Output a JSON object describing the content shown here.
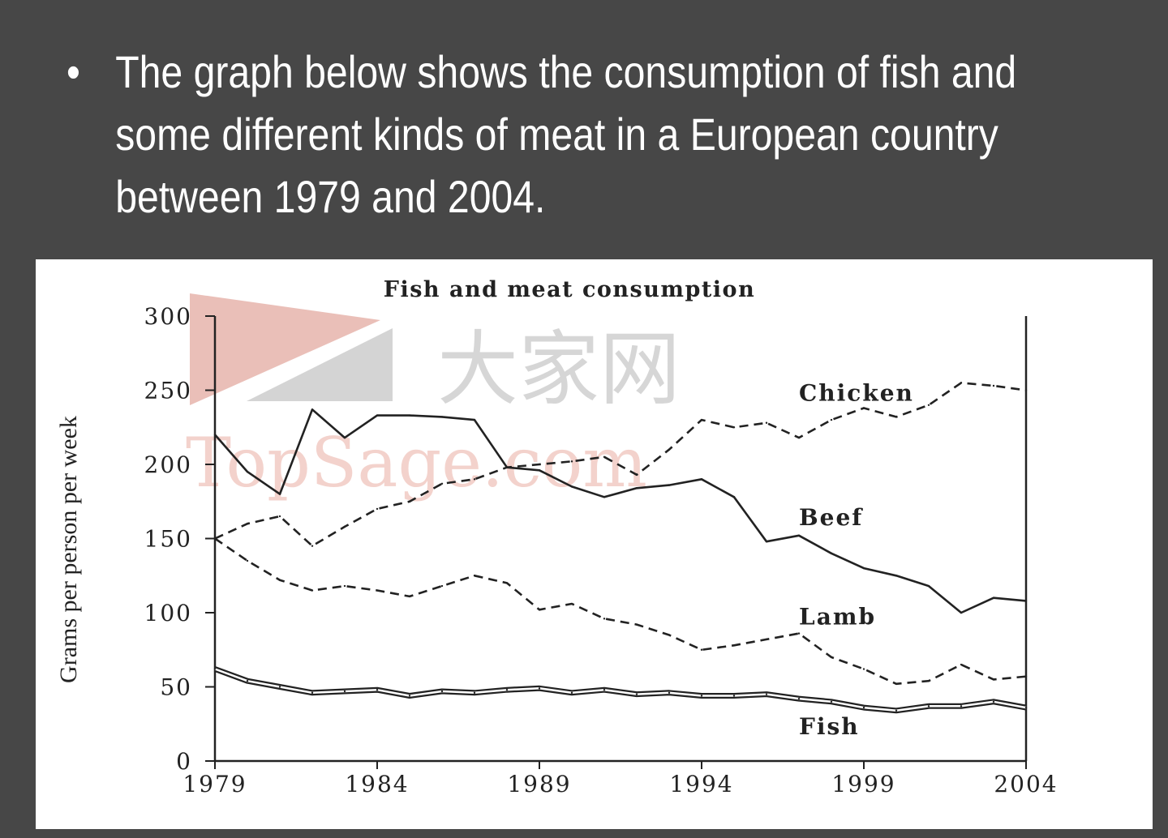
{
  "slide": {
    "bullet": "•",
    "text_lines": [
      "The graph below shows the consumption of fish and",
      "some different kinds of meat in a European country",
      "between 1979 and 2004."
    ]
  },
  "watermark": {
    "cjk": "大家网",
    "latin": "TopSage.com"
  },
  "colors": {
    "background": "#474747",
    "panel": "#ffffff",
    "ink": "#222222",
    "watermark_red": "#e3aaa0",
    "watermark_grey": "#d0d0d0"
  },
  "chart_data": {
    "type": "line",
    "title": "Fish and meat consumption",
    "ylabel": "Grams per person per week",
    "xlabel": "",
    "xlim": [
      1979,
      2004
    ],
    "ylim": [
      0,
      300
    ],
    "x_ticks": [
      1979,
      1984,
      1989,
      1994,
      1999,
      2004
    ],
    "y_ticks": [
      0,
      50,
      100,
      150,
      200,
      250,
      300
    ],
    "grid": false,
    "series": [
      {
        "name": "Chicken",
        "style": "dashed",
        "label_year": 1997,
        "label_value": 243,
        "x": [
          1979,
          1980,
          1981,
          1982,
          1983,
          1984,
          1985,
          1986,
          1987,
          1988,
          1989,
          1990,
          1991,
          1992,
          1993,
          1994,
          1995,
          1996,
          1997,
          1998,
          1999,
          2000,
          2001,
          2002,
          2003,
          2004
        ],
        "values": [
          150,
          160,
          165,
          145,
          158,
          170,
          175,
          187,
          190,
          198,
          200,
          202,
          205,
          193,
          210,
          230,
          225,
          228,
          218,
          230,
          238,
          232,
          240,
          255,
          253,
          250
        ]
      },
      {
        "name": "Beef",
        "style": "solid",
        "label_year": 1997,
        "label_value": 159,
        "x": [
          1979,
          1980,
          1981,
          1982,
          1983,
          1984,
          1985,
          1986,
          1987,
          1988,
          1989,
          1990,
          1991,
          1992,
          1993,
          1994,
          1995,
          1996,
          1997,
          1998,
          1999,
          2000,
          2001,
          2002,
          2003,
          2004
        ],
        "values": [
          220,
          195,
          180,
          237,
          218,
          233,
          233,
          232,
          230,
          198,
          196,
          185,
          178,
          184,
          186,
          190,
          178,
          148,
          152,
          140,
          130,
          125,
          118,
          100,
          110,
          108
        ]
      },
      {
        "name": "Lamb",
        "style": "dashed",
        "label_year": 1997,
        "label_value": 92,
        "x": [
          1979,
          1980,
          1981,
          1982,
          1983,
          1984,
          1985,
          1986,
          1987,
          1988,
          1989,
          1990,
          1991,
          1992,
          1993,
          1994,
          1995,
          1996,
          1997,
          1998,
          1999,
          2000,
          2001,
          2002,
          2003,
          2004
        ],
        "values": [
          150,
          135,
          122,
          115,
          118,
          115,
          111,
          118,
          125,
          120,
          102,
          106,
          96,
          92,
          85,
          75,
          78,
          82,
          86,
          70,
          62,
          52,
          54,
          65,
          55,
          57
        ]
      },
      {
        "name": "Fish",
        "style": "double",
        "label_year": 1997,
        "label_value": 18,
        "x": [
          1979,
          1980,
          1981,
          1982,
          1983,
          1984,
          1985,
          1986,
          1987,
          1988,
          1989,
          1990,
          1991,
          1992,
          1993,
          1994,
          1995,
          1996,
          1997,
          1998,
          1999,
          2000,
          2001,
          2002,
          2003,
          2004
        ],
        "values": [
          62,
          54,
          50,
          46,
          47,
          48,
          44,
          47,
          46,
          48,
          49,
          46,
          48,
          45,
          46,
          44,
          44,
          45,
          42,
          40,
          36,
          34,
          37,
          37,
          40,
          36
        ]
      }
    ]
  }
}
